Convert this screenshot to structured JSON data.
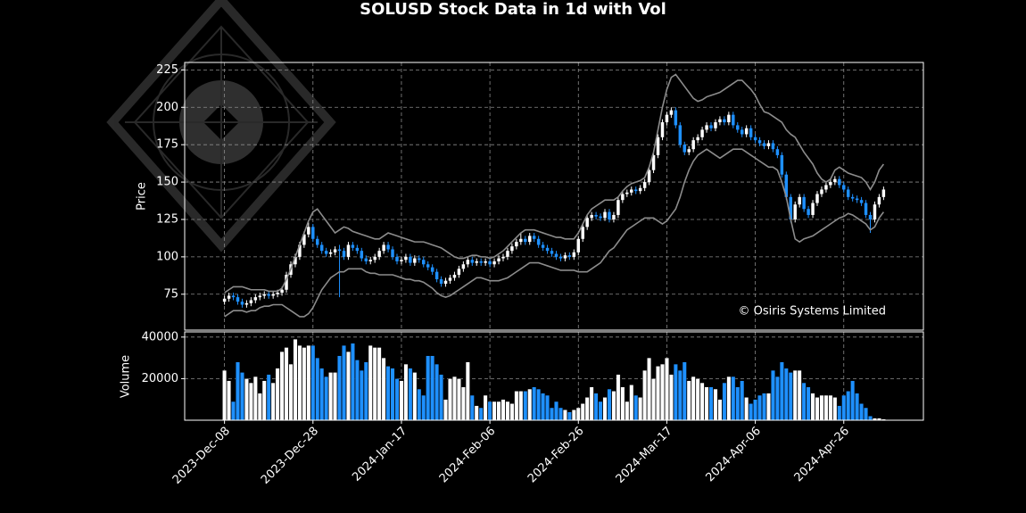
{
  "chart_data": {
    "type": "candlestick",
    "title": "SOLUSD Stock Data in 1d with Vol",
    "y_label": "Price",
    "annotation": "© Osiris Systems Limited",
    "up_color": "#ffffff",
    "down_color": "#1e90ff",
    "band_color": "#8c8c8c",
    "grid": true,
    "xlim": [
      "2023-11-29",
      "2024-05-14"
    ],
    "xticks": [
      {
        "value": "2023-12-08",
        "label": "2023-Dec-08"
      },
      {
        "value": "2023-12-28",
        "label": "2023-Dec-28"
      },
      {
        "value": "2024-01-17",
        "label": "2024-Jan-17"
      },
      {
        "value": "2024-02-06",
        "label": "2024-Feb-06"
      },
      {
        "value": "2024-02-26",
        "label": "2024-Feb-26"
      },
      {
        "value": "2024-03-17",
        "label": "2024-Mar-17"
      },
      {
        "value": "2024-04-06",
        "label": "2024-Apr-06"
      },
      {
        "value": "2024-04-26",
        "label": "2024-Apr-26"
      }
    ],
    "ylim": [
      51,
      230
    ],
    "yticks": [
      75,
      100,
      125,
      150,
      175,
      200,
      225
    ],
    "x": [
      "2023-12-08",
      "2023-12-09",
      "2023-12-10",
      "2023-12-11",
      "2023-12-12",
      "2023-12-13",
      "2023-12-14",
      "2023-12-15",
      "2023-12-16",
      "2023-12-17",
      "2023-12-18",
      "2023-12-19",
      "2023-12-20",
      "2023-12-21",
      "2023-12-22",
      "2023-12-23",
      "2023-12-24",
      "2023-12-25",
      "2023-12-26",
      "2023-12-27",
      "2023-12-28",
      "2023-12-29",
      "2023-12-30",
      "2023-12-31",
      "2024-01-01",
      "2024-01-02",
      "2024-01-03",
      "2024-01-04",
      "2024-01-05",
      "2024-01-06",
      "2024-01-07",
      "2024-01-08",
      "2024-01-09",
      "2024-01-10",
      "2024-01-11",
      "2024-01-12",
      "2024-01-13",
      "2024-01-14",
      "2024-01-15",
      "2024-01-16",
      "2024-01-17",
      "2024-01-18",
      "2024-01-19",
      "2024-01-20",
      "2024-01-21",
      "2024-01-22",
      "2024-01-23",
      "2024-01-24",
      "2024-01-25",
      "2024-01-26",
      "2024-01-27",
      "2024-01-28",
      "2024-01-29",
      "2024-01-30",
      "2024-01-31",
      "2024-02-01",
      "2024-02-02",
      "2024-02-03",
      "2024-02-04",
      "2024-02-05",
      "2024-02-06",
      "2024-02-07",
      "2024-02-08",
      "2024-02-09",
      "2024-02-10",
      "2024-02-11",
      "2024-02-12",
      "2024-02-13",
      "2024-02-14",
      "2024-02-15",
      "2024-02-16",
      "2024-02-17",
      "2024-02-18",
      "2024-02-19",
      "2024-02-20",
      "2024-02-21",
      "2024-02-22",
      "2024-02-23",
      "2024-02-24",
      "2024-02-25",
      "2024-02-26",
      "2024-02-27",
      "2024-02-28",
      "2024-02-29",
      "2024-03-01",
      "2024-03-02",
      "2024-03-03",
      "2024-03-04",
      "2024-03-05",
      "2024-03-06",
      "2024-03-07",
      "2024-03-08",
      "2024-03-09",
      "2024-03-10",
      "2024-03-11",
      "2024-03-12",
      "2024-03-13",
      "2024-03-14",
      "2024-03-15",
      "2024-03-16",
      "2024-03-17",
      "2024-03-18",
      "2024-03-19",
      "2024-03-20",
      "2024-03-21",
      "2024-03-22",
      "2024-03-23",
      "2024-03-24",
      "2024-03-25",
      "2024-03-26",
      "2024-03-27",
      "2024-03-28",
      "2024-03-29",
      "2024-03-30",
      "2024-03-31",
      "2024-04-01",
      "2024-04-02",
      "2024-04-03",
      "2024-04-04",
      "2024-04-05",
      "2024-04-06",
      "2024-04-07",
      "2024-04-08",
      "2024-04-09",
      "2024-04-10",
      "2024-04-11",
      "2024-04-12",
      "2024-04-13",
      "2024-04-14",
      "2024-04-15",
      "2024-04-16",
      "2024-04-17",
      "2024-04-18",
      "2024-04-19",
      "2024-04-20",
      "2024-04-21",
      "2024-04-22",
      "2024-04-23",
      "2024-04-24",
      "2024-04-25",
      "2024-04-26",
      "2024-04-27",
      "2024-04-28",
      "2024-04-29",
      "2024-04-30",
      "2024-05-01",
      "2024-05-02",
      "2024-05-03",
      "2024-05-04",
      "2024-05-05"
    ],
    "open": [
      70,
      72,
      74,
      73,
      70,
      68,
      69,
      71,
      73,
      74,
      75,
      74,
      75,
      76,
      78,
      88,
      95,
      100,
      108,
      115,
      120,
      112,
      108,
      104,
      102,
      103,
      105,
      104,
      100,
      108,
      106,
      104,
      99,
      97,
      98,
      100,
      104,
      108,
      105,
      100,
      97,
      98,
      100,
      96,
      99,
      98,
      95,
      93,
      90,
      85,
      82,
      84,
      86,
      88,
      92,
      95,
      98,
      96,
      97,
      96,
      97,
      95,
      97,
      99,
      100,
      104,
      107,
      110,
      112,
      110,
      114,
      112,
      108,
      106,
      104,
      102,
      100,
      99,
      101,
      100,
      103,
      112,
      120,
      126,
      128,
      127,
      126,
      130,
      125,
      128,
      138,
      142,
      143,
      145,
      144,
      146,
      150,
      158,
      168,
      180,
      190,
      195,
      198,
      188,
      175,
      170,
      172,
      178,
      180,
      185,
      188,
      186,
      190,
      192,
      190,
      195,
      188,
      185,
      182,
      186,
      180,
      178,
      176,
      174,
      176,
      172,
      168,
      155,
      140,
      125,
      135,
      140,
      132,
      128,
      136,
      142,
      145,
      148,
      150,
      152,
      148,
      145,
      140,
      139,
      138,
      136,
      128,
      125,
      135,
      140
    ],
    "high": [
      74,
      76,
      76,
      75,
      72,
      71,
      73,
      75,
      76,
      77,
      77,
      77,
      78,
      80,
      90,
      97,
      102,
      110,
      117,
      123,
      122,
      114,
      110,
      106,
      105,
      107,
      108,
      106,
      110,
      110,
      108,
      106,
      101,
      100,
      102,
      106,
      110,
      110,
      107,
      102,
      100,
      102,
      102,
      101,
      101,
      100,
      97,
      95,
      92,
      87,
      86,
      88,
      90,
      94,
      97,
      100,
      100,
      99,
      99,
      99,
      99,
      99,
      101,
      102,
      106,
      109,
      112,
      116,
      114,
      116,
      116,
      114,
      110,
      108,
      106,
      104,
      102,
      103,
      103,
      105,
      114,
      122,
      128,
      130,
      130,
      129,
      132,
      132,
      130,
      140,
      144,
      145,
      147,
      147,
      148,
      152,
      160,
      170,
      182,
      192,
      197,
      200,
      200,
      190,
      177,
      174,
      180,
      182,
      187,
      190,
      190,
      192,
      194,
      194,
      197,
      197,
      190,
      187,
      188,
      188,
      182,
      180,
      178,
      178,
      178,
      174,
      170,
      157,
      142,
      137,
      142,
      142,
      134,
      138,
      144,
      147,
      150,
      152,
      154,
      154,
      150,
      147,
      142,
      141,
      140,
      138,
      130,
      137,
      142,
      147
    ],
    "low": [
      68,
      70,
      71,
      68,
      66,
      66,
      67,
      69,
      71,
      72,
      72,
      72,
      73,
      74,
      76,
      86,
      93,
      98,
      106,
      113,
      110,
      106,
      102,
      100,
      100,
      101,
      73,
      98,
      98,
      104,
      102,
      97,
      95,
      95,
      96,
      98,
      102,
      103,
      98,
      95,
      95,
      96,
      94,
      94,
      96,
      93,
      91,
      88,
      83,
      80,
      80,
      82,
      84,
      86,
      90,
      93,
      94,
      94,
      94,
      94,
      93,
      93,
      95,
      97,
      98,
      102,
      105,
      108,
      108,
      108,
      110,
      106,
      104,
      102,
      100,
      98,
      97,
      97,
      98,
      98,
      101,
      110,
      118,
      124,
      125,
      124,
      124,
      123,
      123,
      126,
      136,
      140,
      141,
      142,
      142,
      144,
      148,
      156,
      166,
      178,
      188,
      193,
      186,
      173,
      168,
      168,
      170,
      176,
      178,
      183,
      184,
      184,
      188,
      188,
      188,
      186,
      183,
      180,
      180,
      178,
      176,
      174,
      172,
      172,
      170,
      166,
      153,
      138,
      123,
      123,
      133,
      130,
      126,
      126,
      134,
      140,
      143,
      146,
      148,
      146,
      143,
      138,
      137,
      136,
      134,
      126,
      116,
      123,
      133,
      138
    ],
    "close": [
      72,
      74,
      73,
      70,
      68,
      69,
      71,
      73,
      74,
      75,
      74,
      75,
      76,
      78,
      88,
      95,
      100,
      108,
      115,
      120,
      112,
      108,
      104,
      102,
      103,
      105,
      104,
      100,
      108,
      106,
      104,
      99,
      97,
      98,
      100,
      104,
      108,
      105,
      100,
      97,
      98,
      100,
      96,
      99,
      98,
      95,
      93,
      90,
      85,
      82,
      84,
      86,
      88,
      92,
      95,
      98,
      96,
      97,
      96,
      97,
      95,
      97,
      99,
      100,
      104,
      107,
      110,
      112,
      110,
      114,
      112,
      108,
      106,
      104,
      102,
      100,
      99,
      101,
      100,
      103,
      112,
      120,
      126,
      128,
      127,
      126,
      130,
      125,
      128,
      138,
      142,
      143,
      145,
      144,
      146,
      150,
      158,
      168,
      180,
      190,
      195,
      198,
      188,
      175,
      170,
      172,
      178,
      180,
      185,
      188,
      186,
      190,
      192,
      190,
      195,
      188,
      185,
      182,
      186,
      180,
      178,
      176,
      174,
      176,
      172,
      168,
      155,
      140,
      125,
      135,
      140,
      132,
      128,
      136,
      142,
      145,
      148,
      150,
      152,
      148,
      145,
      140,
      139,
      138,
      136,
      128,
      125,
      135,
      140,
      145
    ],
    "upper_band": [
      76,
      78,
      80,
      80,
      80,
      79,
      78,
      78,
      78,
      78,
      77,
      77,
      77,
      79,
      85,
      92,
      100,
      108,
      116,
      124,
      130,
      132,
      128,
      124,
      120,
      116,
      118,
      120,
      119,
      117,
      116,
      115,
      114,
      113,
      112,
      112,
      114,
      116,
      115,
      114,
      113,
      112,
      111,
      110,
      110,
      110,
      109,
      108,
      107,
      106,
      104,
      102,
      100,
      99,
      99,
      100,
      101,
      101,
      100,
      100,
      99,
      100,
      102,
      104,
      107,
      110,
      113,
      116,
      118,
      118,
      118,
      117,
      116,
      115,
      114,
      113,
      113,
      112,
      112,
      112,
      116,
      122,
      128,
      132,
      134,
      136,
      138,
      138,
      138,
      140,
      144,
      147,
      149,
      150,
      151,
      153,
      160,
      170,
      185,
      200,
      212,
      220,
      222,
      218,
      214,
      210,
      206,
      204,
      205,
      207,
      208,
      209,
      210,
      212,
      214,
      216,
      218,
      218,
      215,
      212,
      208,
      202,
      197,
      196,
      194,
      192,
      190,
      185,
      182,
      180,
      175,
      170,
      166,
      162,
      156,
      152,
      150,
      152,
      158,
      160,
      158,
      156,
      155,
      154,
      153,
      150,
      145,
      150,
      158,
      162
    ],
    "lower_band": [
      60,
      62,
      64,
      64,
      64,
      63,
      64,
      64,
      66,
      67,
      67,
      68,
      68,
      68,
      66,
      64,
      62,
      60,
      60,
      62,
      66,
      72,
      78,
      82,
      86,
      88,
      90,
      90,
      92,
      92,
      92,
      92,
      90,
      89,
      89,
      88,
      88,
      88,
      88,
      87,
      86,
      85,
      85,
      84,
      84,
      83,
      81,
      79,
      76,
      74,
      73,
      74,
      76,
      78,
      80,
      82,
      84,
      86,
      86,
      85,
      84,
      84,
      84,
      85,
      86,
      88,
      90,
      92,
      94,
      96,
      96,
      96,
      95,
      94,
      93,
      92,
      91,
      91,
      91,
      91,
      90,
      90,
      90,
      92,
      94,
      96,
      100,
      104,
      106,
      110,
      114,
      118,
      120,
      122,
      124,
      126,
      126,
      126,
      124,
      122,
      124,
      128,
      132,
      140,
      150,
      158,
      164,
      168,
      170,
      172,
      170,
      168,
      166,
      168,
      170,
      172,
      172,
      172,
      170,
      168,
      166,
      164,
      162,
      160,
      160,
      158,
      150,
      140,
      125,
      112,
      110,
      112,
      113,
      114,
      116,
      118,
      120,
      122,
      124,
      126,
      127,
      129,
      128,
      126,
      124,
      122,
      118,
      120,
      126,
      130
    ],
    "volume": {
      "label": "Volume",
      "ylim": [
        0,
        42500
      ],
      "yticks": [
        20000,
        40000
      ],
      "values": [
        24000,
        19000,
        9000,
        28000,
        23000,
        20000,
        18000,
        21000,
        13000,
        19000,
        22000,
        18000,
        25000,
        33000,
        35000,
        27000,
        39000,
        36000,
        35000,
        36000,
        36000,
        30000,
        25000,
        21000,
        23000,
        23000,
        31000,
        36000,
        33000,
        37000,
        29000,
        24000,
        28000,
        36000,
        35000,
        35000,
        30000,
        26000,
        25000,
        20000,
        19000,
        27000,
        25000,
        23000,
        15000,
        12000,
        31000,
        31000,
        27000,
        22000,
        10000,
        20000,
        21000,
        20000,
        16000,
        28000,
        12000,
        7000,
        6000,
        12000,
        9000,
        9000,
        9000,
        10000,
        9000,
        8000,
        14000,
        14000,
        14000,
        15000,
        16000,
        15000,
        13000,
        12000,
        6000,
        9000,
        6000,
        5000,
        4000,
        5000,
        6000,
        8000,
        11000,
        16000,
        13000,
        9000,
        11000,
        15000,
        14000,
        22000,
        16000,
        9000,
        17000,
        12000,
        11000,
        24000,
        30000,
        20000,
        26000,
        27000,
        30000,
        22000,
        27000,
        24000,
        28000,
        19000,
        21000,
        20000,
        18000,
        16000,
        16000,
        15000,
        10000,
        18000,
        21000,
        21000,
        16000,
        19000,
        11000,
        8000,
        10000,
        12000,
        13000,
        13000,
        24000,
        21000,
        28000,
        25000,
        23000,
        24000,
        24000,
        18000,
        16000,
        13000,
        11000,
        12000,
        12000,
        12000,
        11000,
        7000,
        12000,
        14000,
        19000,
        13000,
        8000,
        6000,
        2000,
        1000,
        1000,
        500
      ]
    }
  }
}
